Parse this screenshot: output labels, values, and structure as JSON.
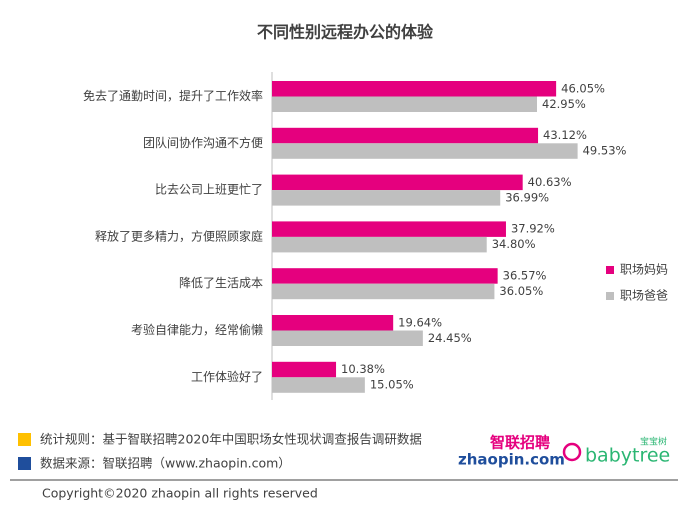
{
  "chart_data": {
    "type": "hbar",
    "title": "不同性别远程办公的体验",
    "categories": [
      "免去了通勤时间，提升了工作效率",
      "团队间协作沟通不方便",
      "比去公司上班更忙了",
      "释放了更多精力，方便照顾家庭",
      "降低了生活成本",
      "考验自律能力，经常偷懒",
      "工作体验好了"
    ],
    "series": [
      {
        "name": "职场妈妈",
        "color": "#e5007e",
        "values": [
          46.05,
          43.12,
          40.63,
          37.92,
          36.57,
          19.64,
          10.38
        ],
        "value_labels": [
          "46.05%",
          "43.12%",
          "40.63%",
          "37.92%",
          "36.57%",
          "19.64%",
          "10.38%"
        ]
      },
      {
        "name": "职场爸爸",
        "color": "#bfbfbf",
        "values": [
          42.95,
          49.53,
          36.99,
          34.8,
          36.05,
          24.45,
          15.05
        ],
        "value_labels": [
          "42.95%",
          "49.53%",
          "36.99%",
          "34.80%",
          "36.05%",
          "24.45%",
          "15.05%"
        ]
      }
    ],
    "legend": "right"
  },
  "footer": {
    "notes": [
      {
        "text": "统计规则：基于智联招聘2020年中国职场女性现状调查报告调研数据",
        "color": "#ffc000"
      },
      {
        "text": "数据来源：智联招聘（www.zhaopin.com）",
        "color": "#1f4e9c"
      }
    ],
    "logos": [
      "智联招聘",
      "zhaopin.com",
      "宝宝树",
      "babytree"
    ],
    "copyright": "Copyright©2020 zhaopin all rights reserved"
  }
}
